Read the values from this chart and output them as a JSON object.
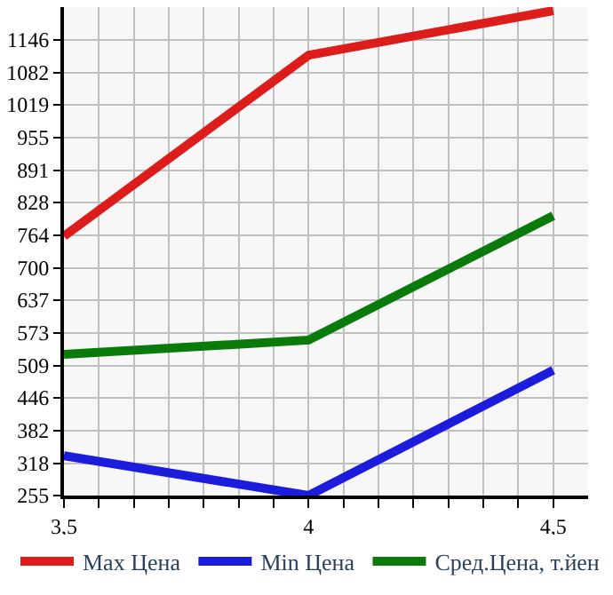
{
  "chart_data": {
    "type": "line",
    "x": [
      3.5,
      4,
      4.5
    ],
    "series": [
      {
        "name": "Max Цена",
        "color": "#dd1c1c",
        "values": [
          762,
          1116,
          1203
        ]
      },
      {
        "name": "Min Цена",
        "color": "#1c1cdd",
        "values": [
          333,
          255,
          500
        ]
      },
      {
        "name": "Сред.Цена, т.йен",
        "color": "#0a7a0a",
        "values": [
          531,
          559,
          802
        ]
      }
    ],
    "xlim": [
      3.5,
      4.5714
    ],
    "xticks": [
      {
        "value": 3.5,
        "label": "3,5"
      },
      {
        "value": 3.5714,
        "label": null
      },
      {
        "value": 3.6429,
        "label": null
      },
      {
        "value": 3.7143,
        "label": null
      },
      {
        "value": 3.7857,
        "label": null
      },
      {
        "value": 3.8571,
        "label": null
      },
      {
        "value": 3.9286,
        "label": null
      },
      {
        "value": 4,
        "label": "4"
      },
      {
        "value": 4.0714,
        "label": null
      },
      {
        "value": 4.1429,
        "label": null
      },
      {
        "value": 4.2143,
        "label": null
      },
      {
        "value": 4.2857,
        "label": null
      },
      {
        "value": 4.3571,
        "label": null
      },
      {
        "value": 4.4286,
        "label": null
      },
      {
        "value": 4.5,
        "label": "4,5"
      }
    ],
    "ylim": [
      255,
      1210
    ],
    "yticks": [
      255,
      318,
      382,
      446,
      509,
      573,
      637,
      700,
      764,
      828,
      891,
      955,
      1019,
      1082,
      1146
    ],
    "grid": true,
    "legend": "bottom",
    "marker": "none",
    "line_style": "solid"
  }
}
